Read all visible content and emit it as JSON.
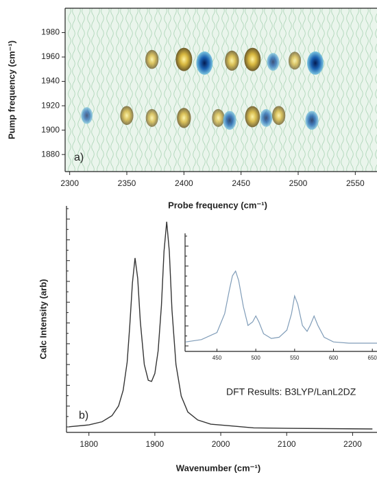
{
  "chart_data": [
    {
      "type": "contour",
      "ylabel": "Pump frequency (cm⁻¹)",
      "xlabel": "Probe frequency (cm⁻¹)",
      "panel_label": "a)",
      "xlim": [
        2296,
        2569
      ],
      "ylim": [
        1866,
        2000
      ],
      "xticks": [
        2300,
        2350,
        2400,
        2450,
        2500,
        2550
      ],
      "yticks": [
        1880,
        1900,
        1920,
        1940,
        1960,
        1980
      ],
      "x": [
        2372,
        2400,
        2418,
        2442,
        2460,
        2478,
        2497,
        2515,
        2315,
        2350,
        2372,
        2400,
        2430,
        2440,
        2460,
        2472,
        2483,
        2512
      ],
      "y": [
        1958,
        1958,
        1955,
        1957,
        1958,
        1956,
        1957,
        1955,
        1912,
        1912,
        1910,
        1910,
        1910,
        1908,
        1911,
        1910,
        1912,
        1908
      ],
      "values": [
        0.6,
        1,
        -1,
        0.7,
        1,
        -0.5,
        0.5,
        -1,
        -0.4,
        0.6,
        0.5,
        0.7,
        0.5,
        -0.6,
        0.8,
        -0.5,
        0.6,
        -0.6
      ]
    },
    {
      "type": "line",
      "ylabel": "Calc Intensity (arb)",
      "xlabel": "Wavenumber (cm⁻¹)",
      "panel_label": "b)",
      "annotation": "DFT Results: B3LYP/LanL2DZ",
      "color": "#333333",
      "xlim": [
        1766,
        2237
      ],
      "ylim": [
        0,
        1
      ],
      "xticks": [
        1800,
        1900,
        2000,
        2100,
        2200
      ],
      "x": [
        1770,
        1800,
        1820,
        1835,
        1845,
        1852,
        1858,
        1862,
        1866,
        1870,
        1874,
        1878,
        1884,
        1890,
        1895,
        1900,
        1905,
        1910,
        1914,
        1918,
        1922,
        1926,
        1932,
        1940,
        1950,
        1965,
        1985,
        2010,
        2050,
        2100,
        2230
      ],
      "values": [
        0.025,
        0.033,
        0.047,
        0.074,
        0.117,
        0.186,
        0.31,
        0.47,
        0.66,
        0.77,
        0.68,
        0.49,
        0.3,
        0.23,
        0.225,
        0.26,
        0.36,
        0.56,
        0.8,
        0.93,
        0.8,
        0.54,
        0.3,
        0.16,
        0.09,
        0.055,
        0.036,
        0.03,
        0.02,
        0.018,
        0.015
      ]
    },
    {
      "type": "line",
      "color": "#7f9cb8",
      "xlim": [
        409,
        656
      ],
      "ylim": [
        0,
        1
      ],
      "xticks": [
        450,
        500,
        550,
        600,
        650
      ],
      "x": [
        410,
        430,
        450,
        460,
        466,
        470,
        474,
        478,
        484,
        490,
        496,
        500,
        504,
        510,
        520,
        530,
        540,
        546,
        550,
        554,
        560,
        566,
        570,
        575,
        580,
        588,
        600,
        620,
        656
      ],
      "values": [
        0.08,
        0.1,
        0.16,
        0.32,
        0.52,
        0.64,
        0.68,
        0.6,
        0.38,
        0.22,
        0.25,
        0.3,
        0.25,
        0.15,
        0.11,
        0.12,
        0.18,
        0.32,
        0.47,
        0.4,
        0.22,
        0.17,
        0.22,
        0.3,
        0.22,
        0.12,
        0.08,
        0.07,
        0.07
      ]
    }
  ]
}
